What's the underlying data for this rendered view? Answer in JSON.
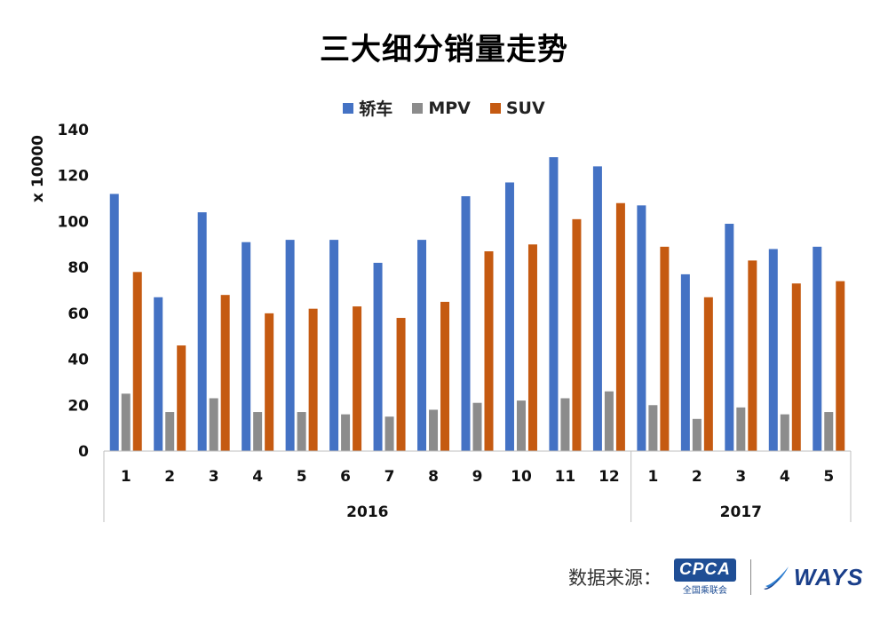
{
  "chart_data": {
    "type": "bar",
    "title": "三大细分销量走势",
    "ylabel": "x 10000",
    "xlabel": "",
    "ylim": [
      0,
      140
    ],
    "yticks": [
      0,
      20,
      40,
      60,
      80,
      100,
      120,
      140
    ],
    "grid": false,
    "legend_position": "top-center",
    "categories": [
      "1",
      "2",
      "3",
      "4",
      "5",
      "6",
      "7",
      "8",
      "9",
      "10",
      "11",
      "12",
      "1",
      "2",
      "3",
      "4",
      "5"
    ],
    "groups": [
      {
        "label": "2016",
        "count": 12
      },
      {
        "label": "2017",
        "count": 5
      }
    ],
    "series": [
      {
        "name": "轿车",
        "color": "#4472c4",
        "values": [
          112,
          67,
          104,
          91,
          92,
          92,
          82,
          92,
          111,
          117,
          128,
          124,
          107,
          77,
          99,
          88,
          89
        ]
      },
      {
        "name": "MPV",
        "color": "#8c8c8c",
        "values": [
          25,
          17,
          23,
          17,
          17,
          16,
          15,
          18,
          21,
          22,
          23,
          26,
          20,
          14,
          19,
          16,
          17
        ]
      },
      {
        "name": "SUV",
        "color": "#c55a11",
        "values": [
          78,
          46,
          68,
          60,
          62,
          63,
          58,
          65,
          87,
          90,
          101,
          108,
          89,
          67,
          83,
          73,
          74
        ]
      }
    ]
  },
  "footer": {
    "source_label": "数据来源：",
    "cpca_logo_text": "CPCA",
    "cpca_logo_sub": "全国乘联会",
    "ways_logo_text": "WAYS"
  }
}
